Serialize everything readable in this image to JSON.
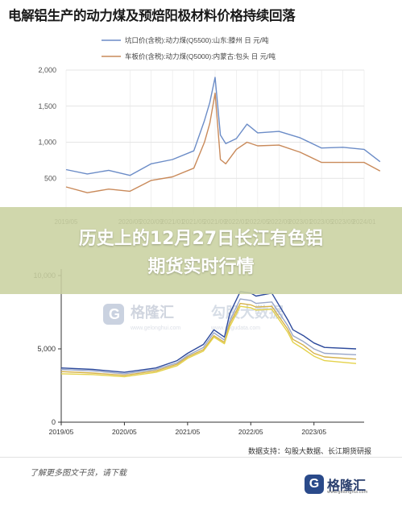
{
  "title": "电解铝生产的动力煤及预焙阳极材料价格持续回落",
  "banner": {
    "line1": "历史上的12月27日长江有色铝",
    "line2": "期货实时行情"
  },
  "source": "数据支持：勾股大数据、长江期货研报",
  "footer": {
    "caption": "了解更多图文干货，请下载",
    "brand_name": "格隆汇",
    "brand_url": "www.gelonghui.com"
  },
  "watermarks": {
    "brand_left": "格隆汇",
    "brand_left_url": "www.gelonghui.com",
    "brand_right": "勾股大数据",
    "brand_right_url": "www.gogudata.com"
  },
  "chart_data": [
    {
      "type": "line",
      "title": "",
      "ylim": [
        0,
        2000
      ],
      "yticks": [
        "2,000",
        "1,500",
        "1,000",
        "500"
      ],
      "xticks": [
        "2019/05",
        "2020/05",
        "2020/09",
        "2021/01",
        "2021/05",
        "2021/09",
        "2022/01",
        "2022/05",
        "2022/09",
        "2023/01",
        "2023/05",
        "2023/09",
        "2024/01"
      ],
      "grid": true,
      "legend_position": "top",
      "series": [
        {
          "name": "坑口价(含税):动力煤(Q5500):山东:滕州  日  元/吨",
          "color": "#6b8cc7",
          "x": [
            "2019/05",
            "2019/09",
            "2020/01",
            "2020/05",
            "2020/09",
            "2021/01",
            "2021/05",
            "2021/07",
            "2021/08",
            "2021/09",
            "2021/10",
            "2021/11",
            "2022/01",
            "2022/03",
            "2022/05",
            "2022/09",
            "2023/01",
            "2023/05",
            "2023/09",
            "2024/01",
            "2024/04"
          ],
          "values": [
            620,
            560,
            610,
            540,
            700,
            760,
            880,
            1300,
            1550,
            1900,
            1100,
            980,
            1050,
            1250,
            1130,
            1150,
            1060,
            920,
            930,
            900,
            730
          ]
        },
        {
          "name": "车板价(含税):动力煤(Q5000):内蒙古:包头  日  元/吨",
          "color": "#c98a5a",
          "x": [
            "2019/05",
            "2019/09",
            "2020/01",
            "2020/05",
            "2020/09",
            "2021/01",
            "2021/05",
            "2021/07",
            "2021/08",
            "2021/09",
            "2021/10",
            "2021/11",
            "2022/01",
            "2022/03",
            "2022/05",
            "2022/09",
            "2023/01",
            "2023/05",
            "2023/09",
            "2024/01",
            "2024/04"
          ],
          "values": [
            380,
            300,
            350,
            320,
            470,
            520,
            640,
            1000,
            1260,
            1680,
            760,
            700,
            900,
            1000,
            950,
            960,
            860,
            720,
            720,
            720,
            600
          ]
        }
      ]
    },
    {
      "type": "line",
      "title": "",
      "ylim": [
        0,
        10000
      ],
      "yticks": [
        "10,000",
        "5,000",
        "0"
      ],
      "xticks": [
        "2019/05",
        "2020/05",
        "2021/05",
        "2022/05",
        "2023/05"
      ],
      "grid": false,
      "series": [
        {
          "color": "#2d4a9c",
          "x": [
            "2019/05",
            "2019/11",
            "2020/05",
            "2020/11",
            "2021/03",
            "2021/05",
            "2021/08",
            "2021/10",
            "2021/12",
            "2022/01",
            "2022/03",
            "2022/05",
            "2022/06",
            "2022/09",
            "2022/12",
            "2023/01",
            "2023/03",
            "2023/05",
            "2023/07",
            "2024/01"
          ],
          "values": [
            3700,
            3600,
            3400,
            3700,
            4200,
            4700,
            5300,
            6300,
            5800,
            7400,
            8900,
            8800,
            8600,
            8800,
            7000,
            6300,
            5900,
            5400,
            5100,
            5000
          ]
        },
        {
          "color": "#9aa7c8",
          "x": [
            "2019/05",
            "2019/11",
            "2020/05",
            "2020/11",
            "2021/03",
            "2021/05",
            "2021/08",
            "2021/10",
            "2021/12",
            "2022/01",
            "2022/03",
            "2022/05",
            "2022/06",
            "2022/09",
            "2022/12",
            "2023/01",
            "2023/03",
            "2023/05",
            "2023/07",
            "2024/01"
          ],
          "values": [
            3600,
            3500,
            3300,
            3600,
            4050,
            4550,
            5100,
            6100,
            5600,
            6900,
            8400,
            8300,
            8100,
            8200,
            6600,
            5900,
            5500,
            5000,
            4700,
            4600
          ]
        },
        {
          "color": "#d6b24a",
          "x": [
            "2019/05",
            "2019/11",
            "2020/05",
            "2020/11",
            "2021/03",
            "2021/05",
            "2021/08",
            "2021/10",
            "2021/12",
            "2022/01",
            "2022/03",
            "2022/05",
            "2022/06",
            "2022/09",
            "2022/12",
            "2023/01",
            "2023/03",
            "2023/05",
            "2023/07",
            "2024/01"
          ],
          "values": [
            3450,
            3350,
            3200,
            3500,
            3950,
            4450,
            4950,
            5900,
            5450,
            6700,
            8100,
            8000,
            7850,
            7900,
            6350,
            5650,
            5250,
            4700,
            4450,
            4300
          ]
        },
        {
          "color": "#e4d24a",
          "x": [
            "2019/05",
            "2019/11",
            "2020/05",
            "2020/11",
            "2021/03",
            "2021/05",
            "2021/08",
            "2021/10",
            "2021/12",
            "2022/01",
            "2022/03",
            "2022/05",
            "2022/06",
            "2022/09",
            "2022/12",
            "2023/01",
            "2023/03",
            "2023/05",
            "2023/07",
            "2024/01"
          ],
          "values": [
            3300,
            3250,
            3100,
            3400,
            3850,
            4350,
            4850,
            5800,
            5350,
            6500,
            7900,
            7800,
            7650,
            7700,
            6150,
            5450,
            5000,
            4500,
            4200,
            4000
          ]
        }
      ]
    }
  ]
}
